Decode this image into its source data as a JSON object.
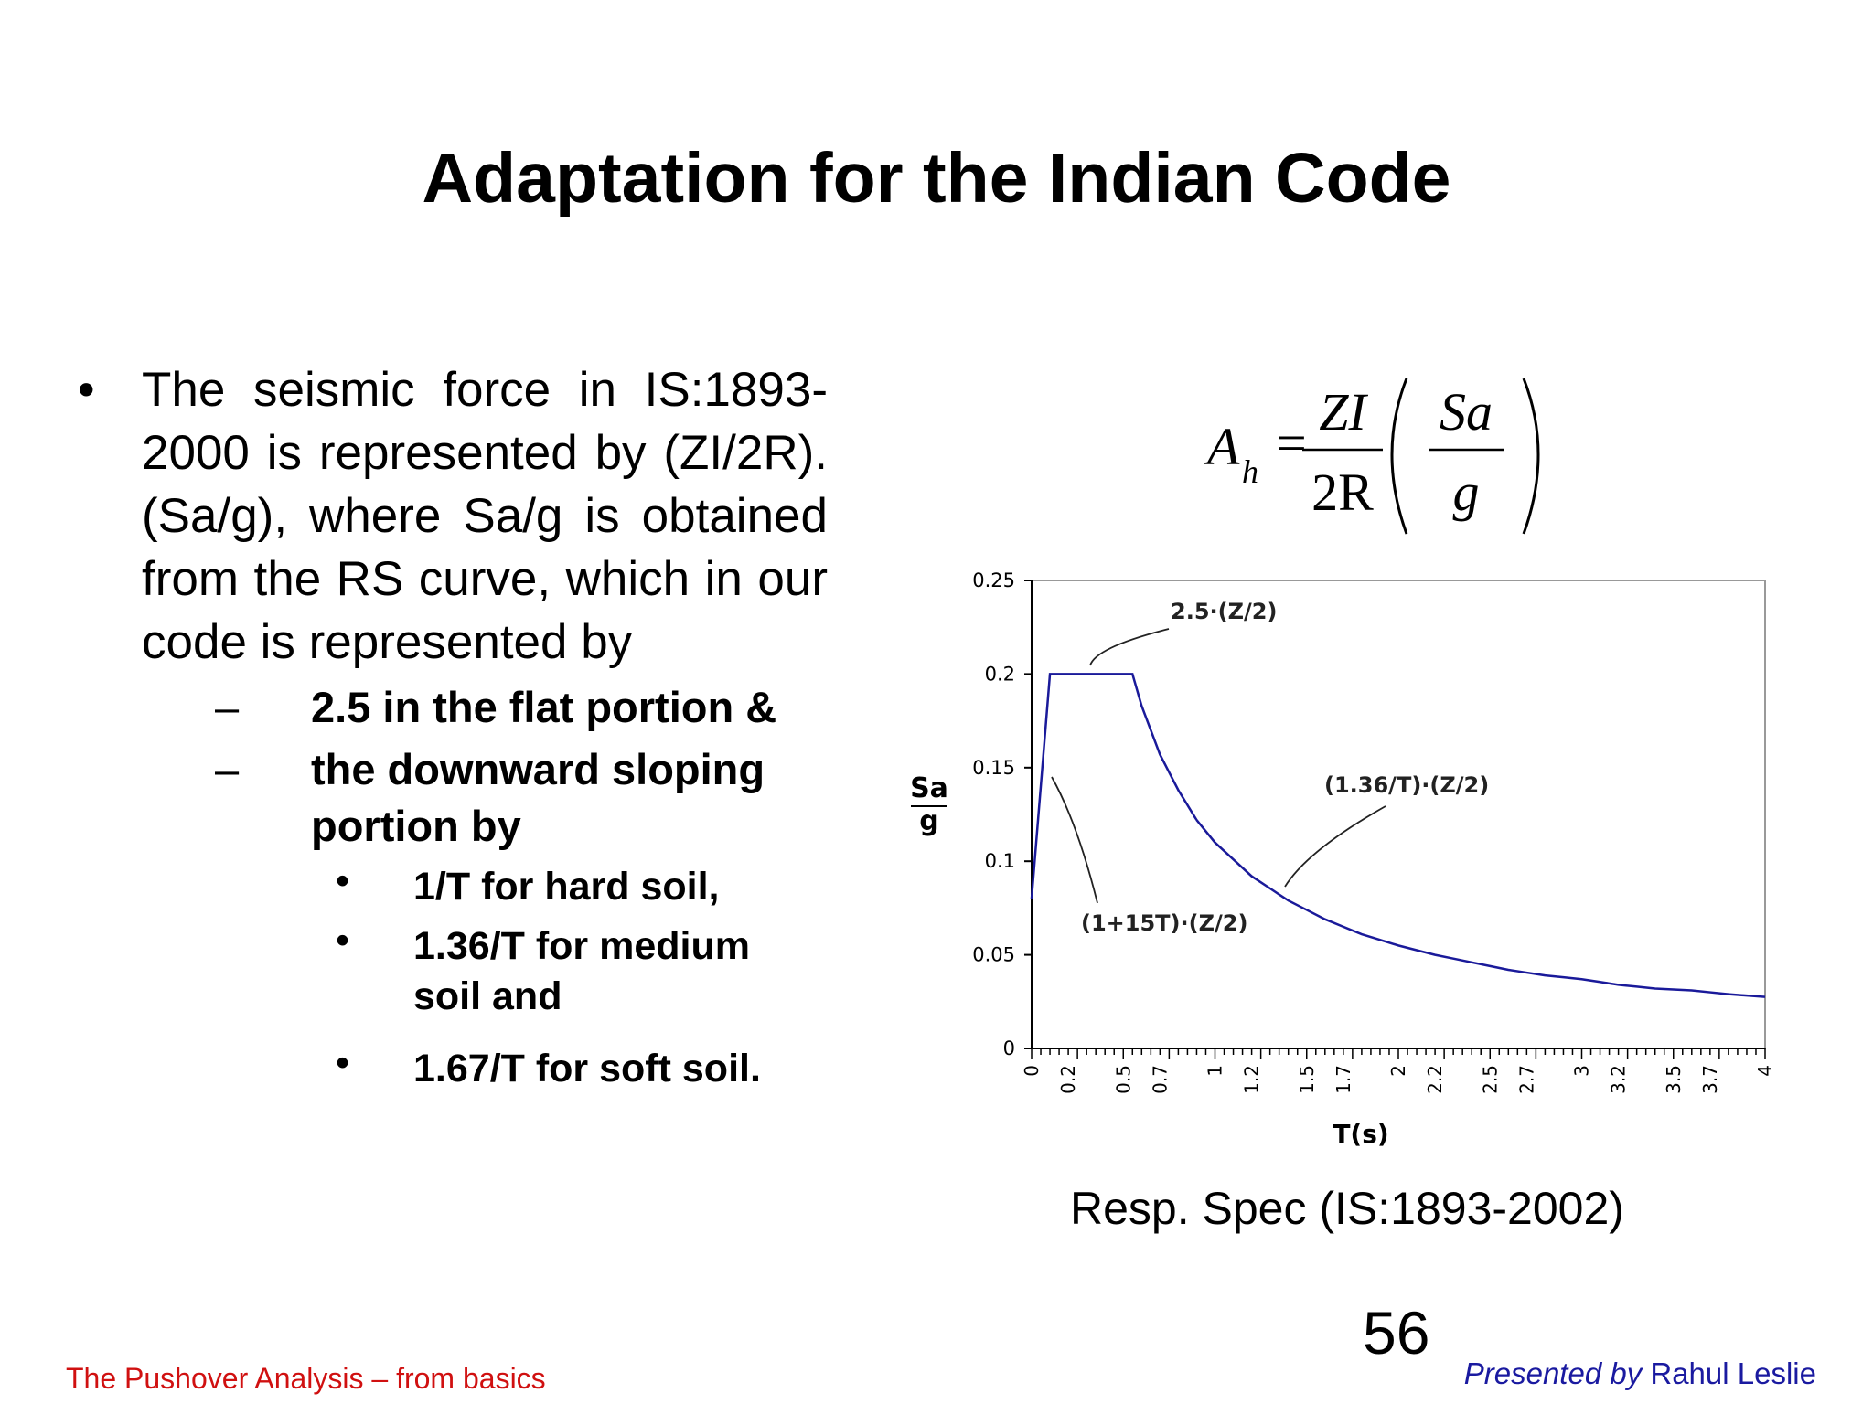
{
  "slide": {
    "title": "Adaptation for the Indian Code",
    "bullets": {
      "main": "The seismic force in IS:1893-2000 is represented by (ZI/2R).(Sa/g), where Sa/g is obtained from the RS curve, which in our code is represented by",
      "sub1": "2.5 in the flat portion &",
      "sub2": "the downward sloping portion by",
      "items": [
        "1/T for hard soil,",
        "1.36/T for medium soil and",
        "1.67/T for soft soil."
      ]
    },
    "formula": {
      "lhs": "A",
      "lhs_sub": "h",
      "num1": "ZI",
      "den1": "2R",
      "num2": "Sa",
      "den2": "g"
    },
    "caption": "Resp. Spec (IS:1893-2002)",
    "page_number": "56",
    "footer_left": "The Pushover Analysis – from basics",
    "footer_right_italic": "Presented by",
    "footer_right_name": "Rahul Leslie"
  },
  "chart_data": {
    "type": "line",
    "xlabel": "T(s)",
    "ylabel_top": "Sa",
    "ylabel_bottom": "g",
    "xlim": [
      0,
      4
    ],
    "ylim": [
      0,
      0.25
    ],
    "yticks": [
      "0",
      "0.05",
      "0.1",
      "0.15",
      "0.2",
      "0.25"
    ],
    "xtick_labels": [
      "0",
      "0.2",
      "0.5",
      "0.7",
      "1",
      "1.2",
      "1.5",
      "1.7",
      "2",
      "2.2",
      "2.5",
      "2.7",
      "3",
      "3.2",
      "3.5",
      "3.7",
      "4"
    ],
    "series": [
      {
        "color": "#1a1a9a",
        "x": [
          0,
          0.1,
          0.55,
          0.6,
          0.7,
          0.8,
          0.9,
          1.0,
          1.2,
          1.4,
          1.6,
          1.8,
          2.0,
          2.2,
          2.4,
          2.6,
          2.8,
          3.0,
          3.2,
          3.4,
          3.6,
          3.8,
          4.0
        ],
        "y": [
          0.08,
          0.2,
          0.2,
          0.183,
          0.157,
          0.138,
          0.122,
          0.11,
          0.092,
          0.079,
          0.069,
          0.061,
          0.055,
          0.05,
          0.046,
          0.042,
          0.039,
          0.037,
          0.034,
          0.032,
          0.031,
          0.029,
          0.0275
        ]
      }
    ],
    "annotations": [
      "2.5·(Z/2)",
      "(1.36/T)·(Z/2)",
      "(1+15T)·(Z/2)"
    ]
  }
}
